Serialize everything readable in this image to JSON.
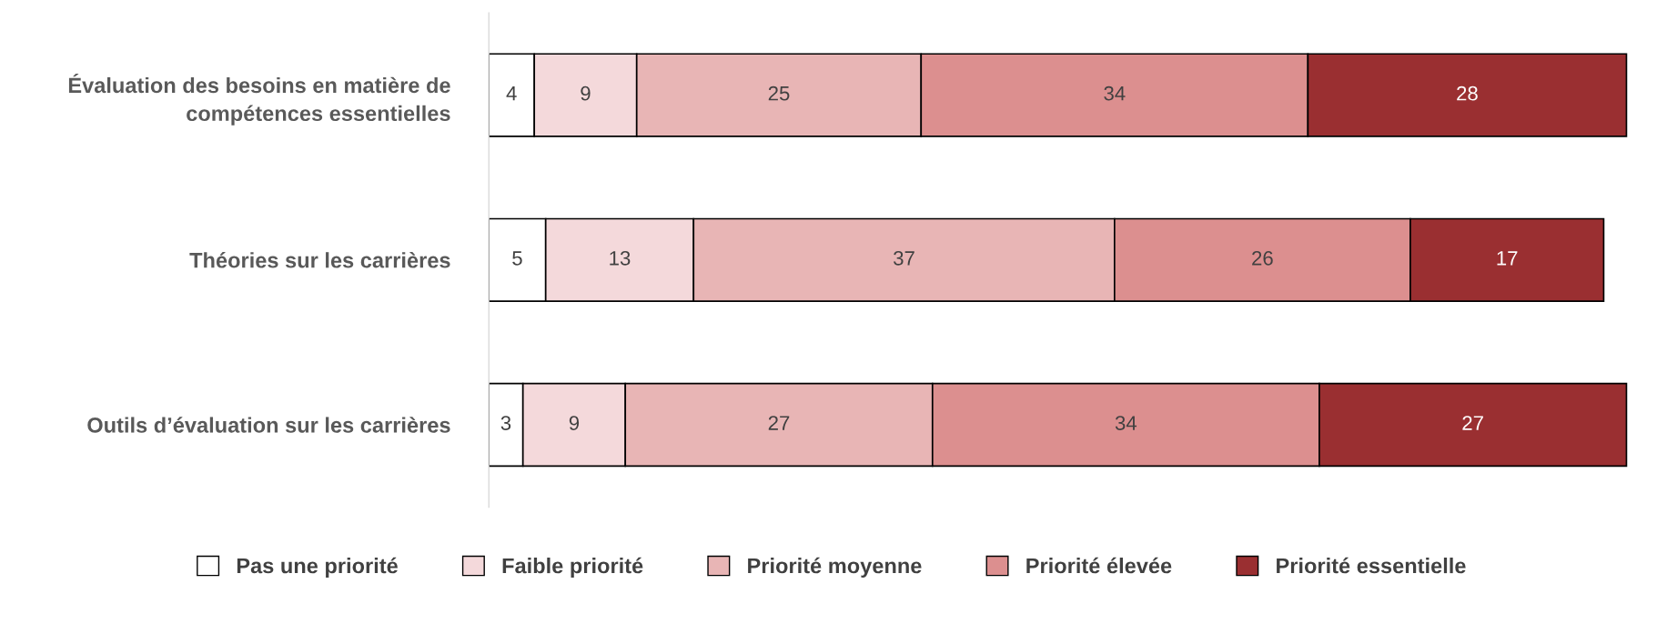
{
  "chart_data": {
    "type": "bar",
    "orientation": "horizontal",
    "stacked": true,
    "data_labels": true,
    "grid": false,
    "legend": "bottom",
    "tick_labels": "y",
    "categories": [
      "Évaluation des besoins en matière de compétences essentielles",
      "Théories sur les carrières",
      "Outils d’évaluation sur les carrières"
    ],
    "series": [
      {
        "name": "Pas une priorité",
        "color": "#ffffff",
        "values": [
          4,
          5,
          3
        ]
      },
      {
        "name": "Faible priorité",
        "color": "#f4d9db",
        "values": [
          9,
          13,
          9
        ]
      },
      {
        "name": "Priorité moyenne",
        "color": "#e8b5b5",
        "values": [
          25,
          37,
          27
        ]
      },
      {
        "name": "Priorité élevée",
        "color": "#dc8f8f",
        "values": [
          34,
          26,
          34
        ]
      },
      {
        "name": "Priorité essentielle",
        "color": "#9a2f31",
        "values": [
          28,
          17,
          27
        ]
      }
    ]
  }
}
